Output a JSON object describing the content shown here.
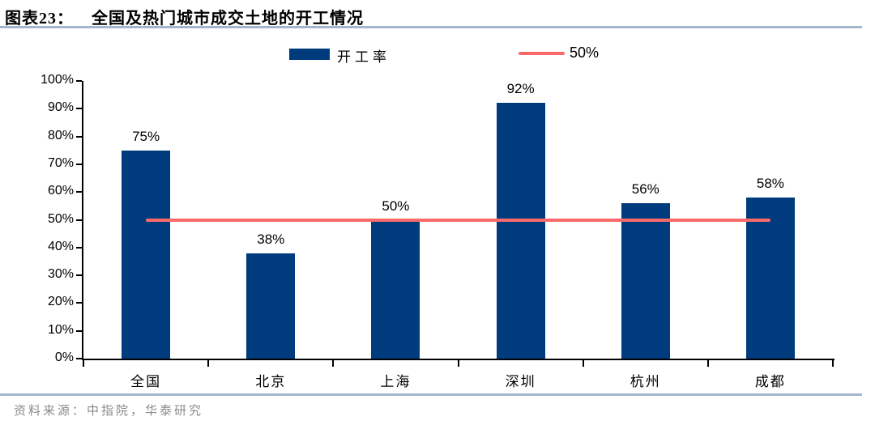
{
  "header": {
    "figure_label": "图表23：",
    "title": "全国及热门城市成交土地的开工情况"
  },
  "legend": {
    "bar_label": "开工率",
    "line_label": "50%"
  },
  "colors": {
    "bar": "#003c7d",
    "reference_line": "#fa6a6a",
    "divider": "#a4b6cc",
    "axis": "#000000",
    "footer_text": "#8a8a8a"
  },
  "chart_data": {
    "type": "bar",
    "title": "全国及热门城市成交土地的开工情况",
    "categories": [
      "全国",
      "北京",
      "上海",
      "深圳",
      "杭州",
      "成都"
    ],
    "values": [
      75,
      38,
      50,
      92,
      56,
      58
    ],
    "value_labels": [
      "75%",
      "38%",
      "50%",
      "92%",
      "56%",
      "58%"
    ],
    "ylim": [
      0,
      100
    ],
    "ytick_values": [
      0,
      10,
      20,
      30,
      40,
      50,
      60,
      70,
      80,
      90,
      100
    ],
    "ytick_labels": [
      "0%",
      "10%",
      "20%",
      "30%",
      "40%",
      "50%",
      "60%",
      "70%",
      "80%",
      "90%",
      "100%"
    ],
    "reference_line": {
      "value": 50,
      "label": "50%"
    },
    "legend": [
      "开工率",
      "50%"
    ],
    "legend_position": "top",
    "grid": false
  },
  "footer": {
    "source": "资料来源：中指院，华泰研究"
  }
}
